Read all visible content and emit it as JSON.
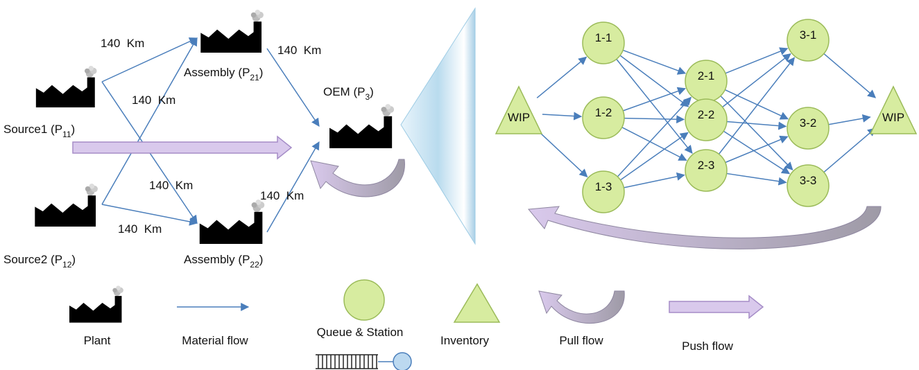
{
  "plants": [
    {
      "name": "Source1 (P",
      "sub": "11",
      "end": ")"
    },
    {
      "name": "Source2 (P",
      "sub": "12",
      "end": ")"
    },
    {
      "name": "Assembly (P",
      "sub": "21",
      "end": ")"
    },
    {
      "name": "Assembly (P",
      "sub": "22",
      "end": ")"
    },
    {
      "name": "OEM (P",
      "sub": "3",
      "end": ")"
    }
  ],
  "distances": [
    "140  Km",
    "140  Km",
    "140  Km",
    "140  Km",
    "140  Km",
    "140  Km"
  ],
  "network_nodes": [
    "WIP",
    "1-1",
    "1-2",
    "1-3",
    "2-1",
    "2-2",
    "2-3",
    "3-1",
    "3-2",
    "3-3",
    "WIP"
  ],
  "legend": [
    "Plant",
    "Material flow",
    "Queue & Station",
    "Inventory",
    "Pull flow",
    "Push flow"
  ]
}
